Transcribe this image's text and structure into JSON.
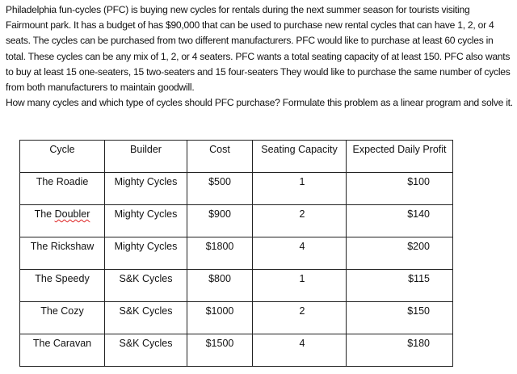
{
  "problem": {
    "paragraph1": "Philadelphia fun-cycles (PFC) is buying new cycles for rentals during the next summer season for tourists visiting Fairmount park. It has a budget of has $90,000 that can be used to purchase new rental cycles that can have 1, 2, or 4 seats. The cycles can be purchased from two different manufacturers. PFC would like to purchase at least 60 cycles in total. These cycles can be any mix of 1, 2, or 4 seaters. PFC wants a total seating capacity of at least 150. PFC also wants to buy at least 15 one-seaters, 15 two-seaters and 15 four-seaters They would like to purchase the same number of cycles from both manufacturers to maintain goodwill.",
    "paragraph2": "How many cycles and which type of cycles should PFC purchase? Formulate this problem as a linear program and solve it."
  },
  "table": {
    "headers": [
      "Cycle",
      "Builder",
      "Cost",
      "Seating Capacity",
      "Expected Daily Profit"
    ],
    "rows": [
      [
        "The Roadie",
        "Mighty Cycles",
        "$500",
        "1",
        "$100"
      ],
      [
        "The Doubler",
        "Mighty Cycles",
        "$900",
        "2",
        "$140"
      ],
      [
        "The Rickshaw",
        "Mighty Cycles",
        "$1800",
        "4",
        "$200"
      ],
      [
        "The Speedy",
        "S&K Cycles",
        "$800",
        "1",
        "$115"
      ],
      [
        "The Cozy",
        "S&K Cycles",
        "$1000",
        "2",
        "$150"
      ],
      [
        "The Caravan",
        "S&K Cycles",
        "$1500",
        "4",
        "$180"
      ]
    ]
  }
}
